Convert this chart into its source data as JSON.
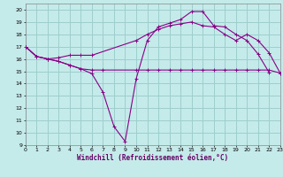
{
  "xlabel": "Windchill (Refroidissement éolien,°C)",
  "background_color": "#c5eaea",
  "grid_color": "#9ecece",
  "line_color": "#880088",
  "xlim": [
    0,
    23
  ],
  "ylim": [
    9,
    20.5
  ],
  "xticks": [
    0,
    1,
    2,
    3,
    4,
    5,
    6,
    7,
    8,
    9,
    10,
    11,
    12,
    13,
    14,
    15,
    16,
    17,
    18,
    19,
    20,
    21,
    22,
    23
  ],
  "yticks": [
    9,
    10,
    11,
    12,
    13,
    14,
    15,
    16,
    17,
    18,
    19,
    20
  ],
  "s1_x": [
    0,
    1,
    2,
    3,
    4,
    5,
    6,
    7,
    8,
    9,
    10,
    11,
    12,
    13,
    14,
    15,
    16,
    17,
    18,
    19,
    20,
    21,
    22
  ],
  "s1_y": [
    17,
    16.2,
    16.0,
    15.8,
    15.5,
    15.2,
    14.8,
    13.3,
    10.5,
    9.3,
    14.4,
    17.5,
    18.6,
    18.9,
    19.2,
    19.85,
    19.85,
    18.7,
    18.6,
    18.0,
    17.5,
    16.4,
    14.9
  ],
  "s2_x": [
    0,
    1,
    2,
    3,
    4,
    5,
    6,
    10,
    11,
    12,
    13,
    14,
    15,
    16,
    17,
    18,
    19,
    20,
    21,
    22,
    23
  ],
  "s2_y": [
    17,
    16.2,
    16.0,
    16.1,
    16.3,
    16.3,
    16.3,
    17.5,
    18.0,
    18.4,
    18.7,
    18.85,
    19.0,
    18.7,
    18.6,
    18.0,
    17.5,
    18.0,
    17.5,
    16.5,
    14.85
  ],
  "s3_x": [
    0,
    1,
    2,
    3,
    4,
    5,
    6,
    7,
    10,
    11,
    12,
    13,
    14,
    15,
    16,
    17,
    18,
    19,
    20,
    21,
    22,
    23
  ],
  "s3_y": [
    17,
    16.2,
    16.0,
    15.8,
    15.5,
    15.2,
    15.1,
    15.1,
    15.1,
    15.1,
    15.1,
    15.1,
    15.1,
    15.1,
    15.1,
    15.1,
    15.1,
    15.1,
    15.1,
    15.1,
    15.1,
    14.85
  ],
  "xlabel_color": "#660066",
  "xlabel_fontsize": 5.5
}
